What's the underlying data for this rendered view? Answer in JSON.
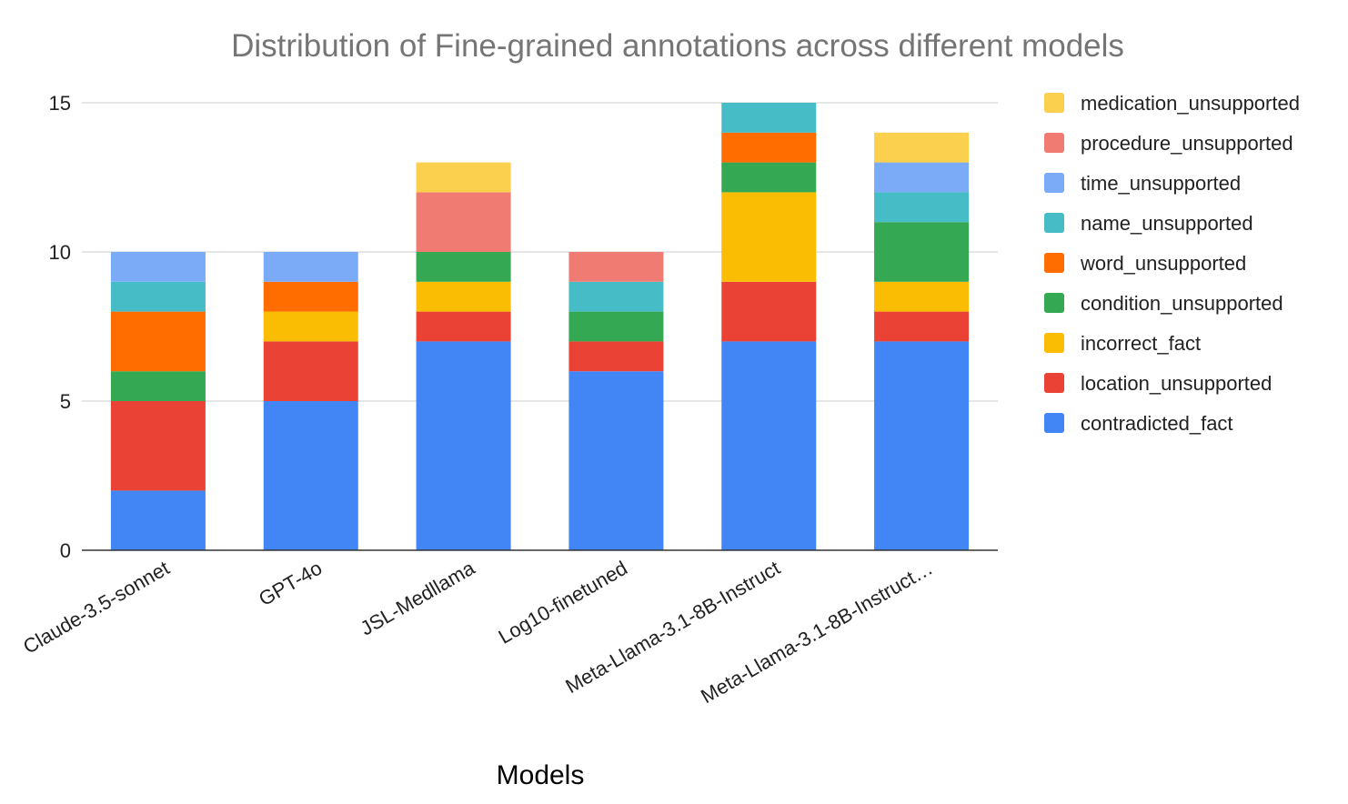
{
  "chart_data": {
    "type": "bar",
    "stacked": true,
    "title": "Distribution of Fine-grained annotations across different models",
    "xlabel": "Models",
    "ylabel": "",
    "ylim": [
      0,
      15
    ],
    "yticks": [
      0,
      5,
      10,
      15
    ],
    "grid": true,
    "legend_position": "right",
    "categories": [
      "Claude-3.5-sonnet",
      "GPT-4o",
      "JSL-Medllama",
      "Log10-finetuned",
      "Meta-Llama-3.1-8B-Instruct",
      "Meta-Llama-3.1-8B-Instruct…"
    ],
    "series": [
      {
        "name": "contradicted_fact",
        "color": "#4285F4",
        "values": [
          2,
          5,
          7,
          6,
          7,
          7
        ]
      },
      {
        "name": "location_unsupported",
        "color": "#EA4335",
        "values": [
          3,
          2,
          1,
          1,
          2,
          1
        ]
      },
      {
        "name": "incorrect_fact",
        "color": "#FBBC04",
        "values": [
          0,
          1,
          1,
          0,
          3,
          1
        ]
      },
      {
        "name": "condition_unsupported",
        "color": "#34A853",
        "values": [
          1,
          0,
          1,
          1,
          1,
          2
        ]
      },
      {
        "name": "word_unsupported",
        "color": "#FF6D01",
        "values": [
          2,
          1,
          0,
          0,
          1,
          0
        ]
      },
      {
        "name": "name_unsupported",
        "color": "#46BDC6",
        "values": [
          1,
          0,
          0,
          1,
          1,
          1
        ]
      },
      {
        "name": "time_unsupported",
        "color": "#7BAAF7",
        "values": [
          1,
          1,
          0,
          0,
          0,
          1
        ]
      },
      {
        "name": "procedure_unsupported",
        "color": "#F07B72",
        "values": [
          0,
          0,
          2,
          1,
          0,
          0
        ]
      },
      {
        "name": "medication_unsupported",
        "color": "#FCD04F",
        "values": [
          0,
          0,
          1,
          0,
          0,
          1
        ]
      }
    ]
  }
}
